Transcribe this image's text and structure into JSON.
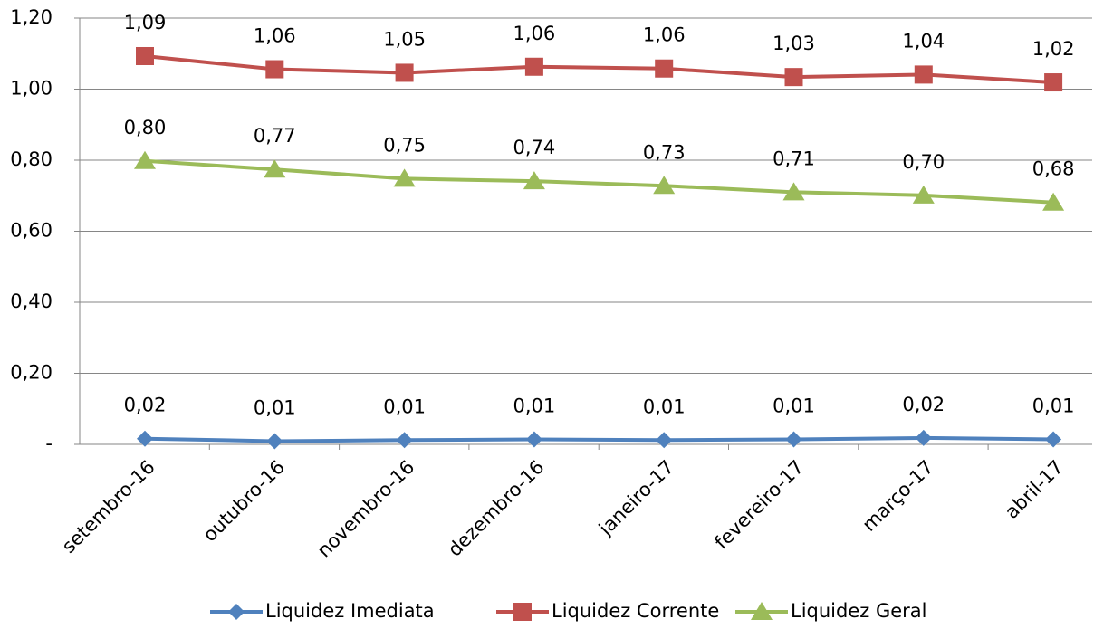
{
  "chart_data": {
    "type": "line",
    "categories": [
      "setembro-16",
      "outubro-16",
      "novembro-16",
      "dezembro-16",
      "janeiro-17",
      "fevereiro-17",
      "março-17",
      "abril-17"
    ],
    "series": [
      {
        "name": "Liquidez Imediata",
        "color": "#4f81bd",
        "marker": "diamond",
        "values": [
          0.016,
          0.009,
          0.012,
          0.014,
          0.012,
          0.014,
          0.018,
          0.014
        ],
        "value_labels": [
          "0,02",
          "0,01",
          "0,01",
          "0,01",
          "0,01",
          "0,01",
          "0,02",
          "0,01"
        ]
      },
      {
        "name": "Liquidez Corrente",
        "color": "#c0504d",
        "marker": "square",
        "values": [
          1.093,
          1.056,
          1.046,
          1.063,
          1.058,
          1.034,
          1.041,
          1.019
        ],
        "value_labels": [
          "1,09",
          "1,06",
          "1,05",
          "1,06",
          "1,06",
          "1,03",
          "1,04",
          "1,02"
        ]
      },
      {
        "name": "Liquidez Geral",
        "color": "#9bbb59",
        "marker": "triangle",
        "values": [
          0.798,
          0.774,
          0.748,
          0.741,
          0.728,
          0.71,
          0.701,
          0.681
        ],
        "value_labels": [
          "0,80",
          "0,77",
          "0,75",
          "0,74",
          "0,73",
          "0,71",
          "0,70",
          "0,68"
        ]
      }
    ],
    "ylim": [
      0,
      1.2
    ],
    "yticks": [
      {
        "value": 0,
        "label": "-"
      },
      {
        "value": 0.2,
        "label": "0,20"
      },
      {
        "value": 0.4,
        "label": "0,40"
      },
      {
        "value": 0.6,
        "label": "0,60"
      },
      {
        "value": 0.8,
        "label": "0,80"
      },
      {
        "value": 1.0,
        "label": "1,00"
      },
      {
        "value": 1.2,
        "label": "1,20"
      }
    ],
    "grid": true,
    "legend": "bottom"
  }
}
